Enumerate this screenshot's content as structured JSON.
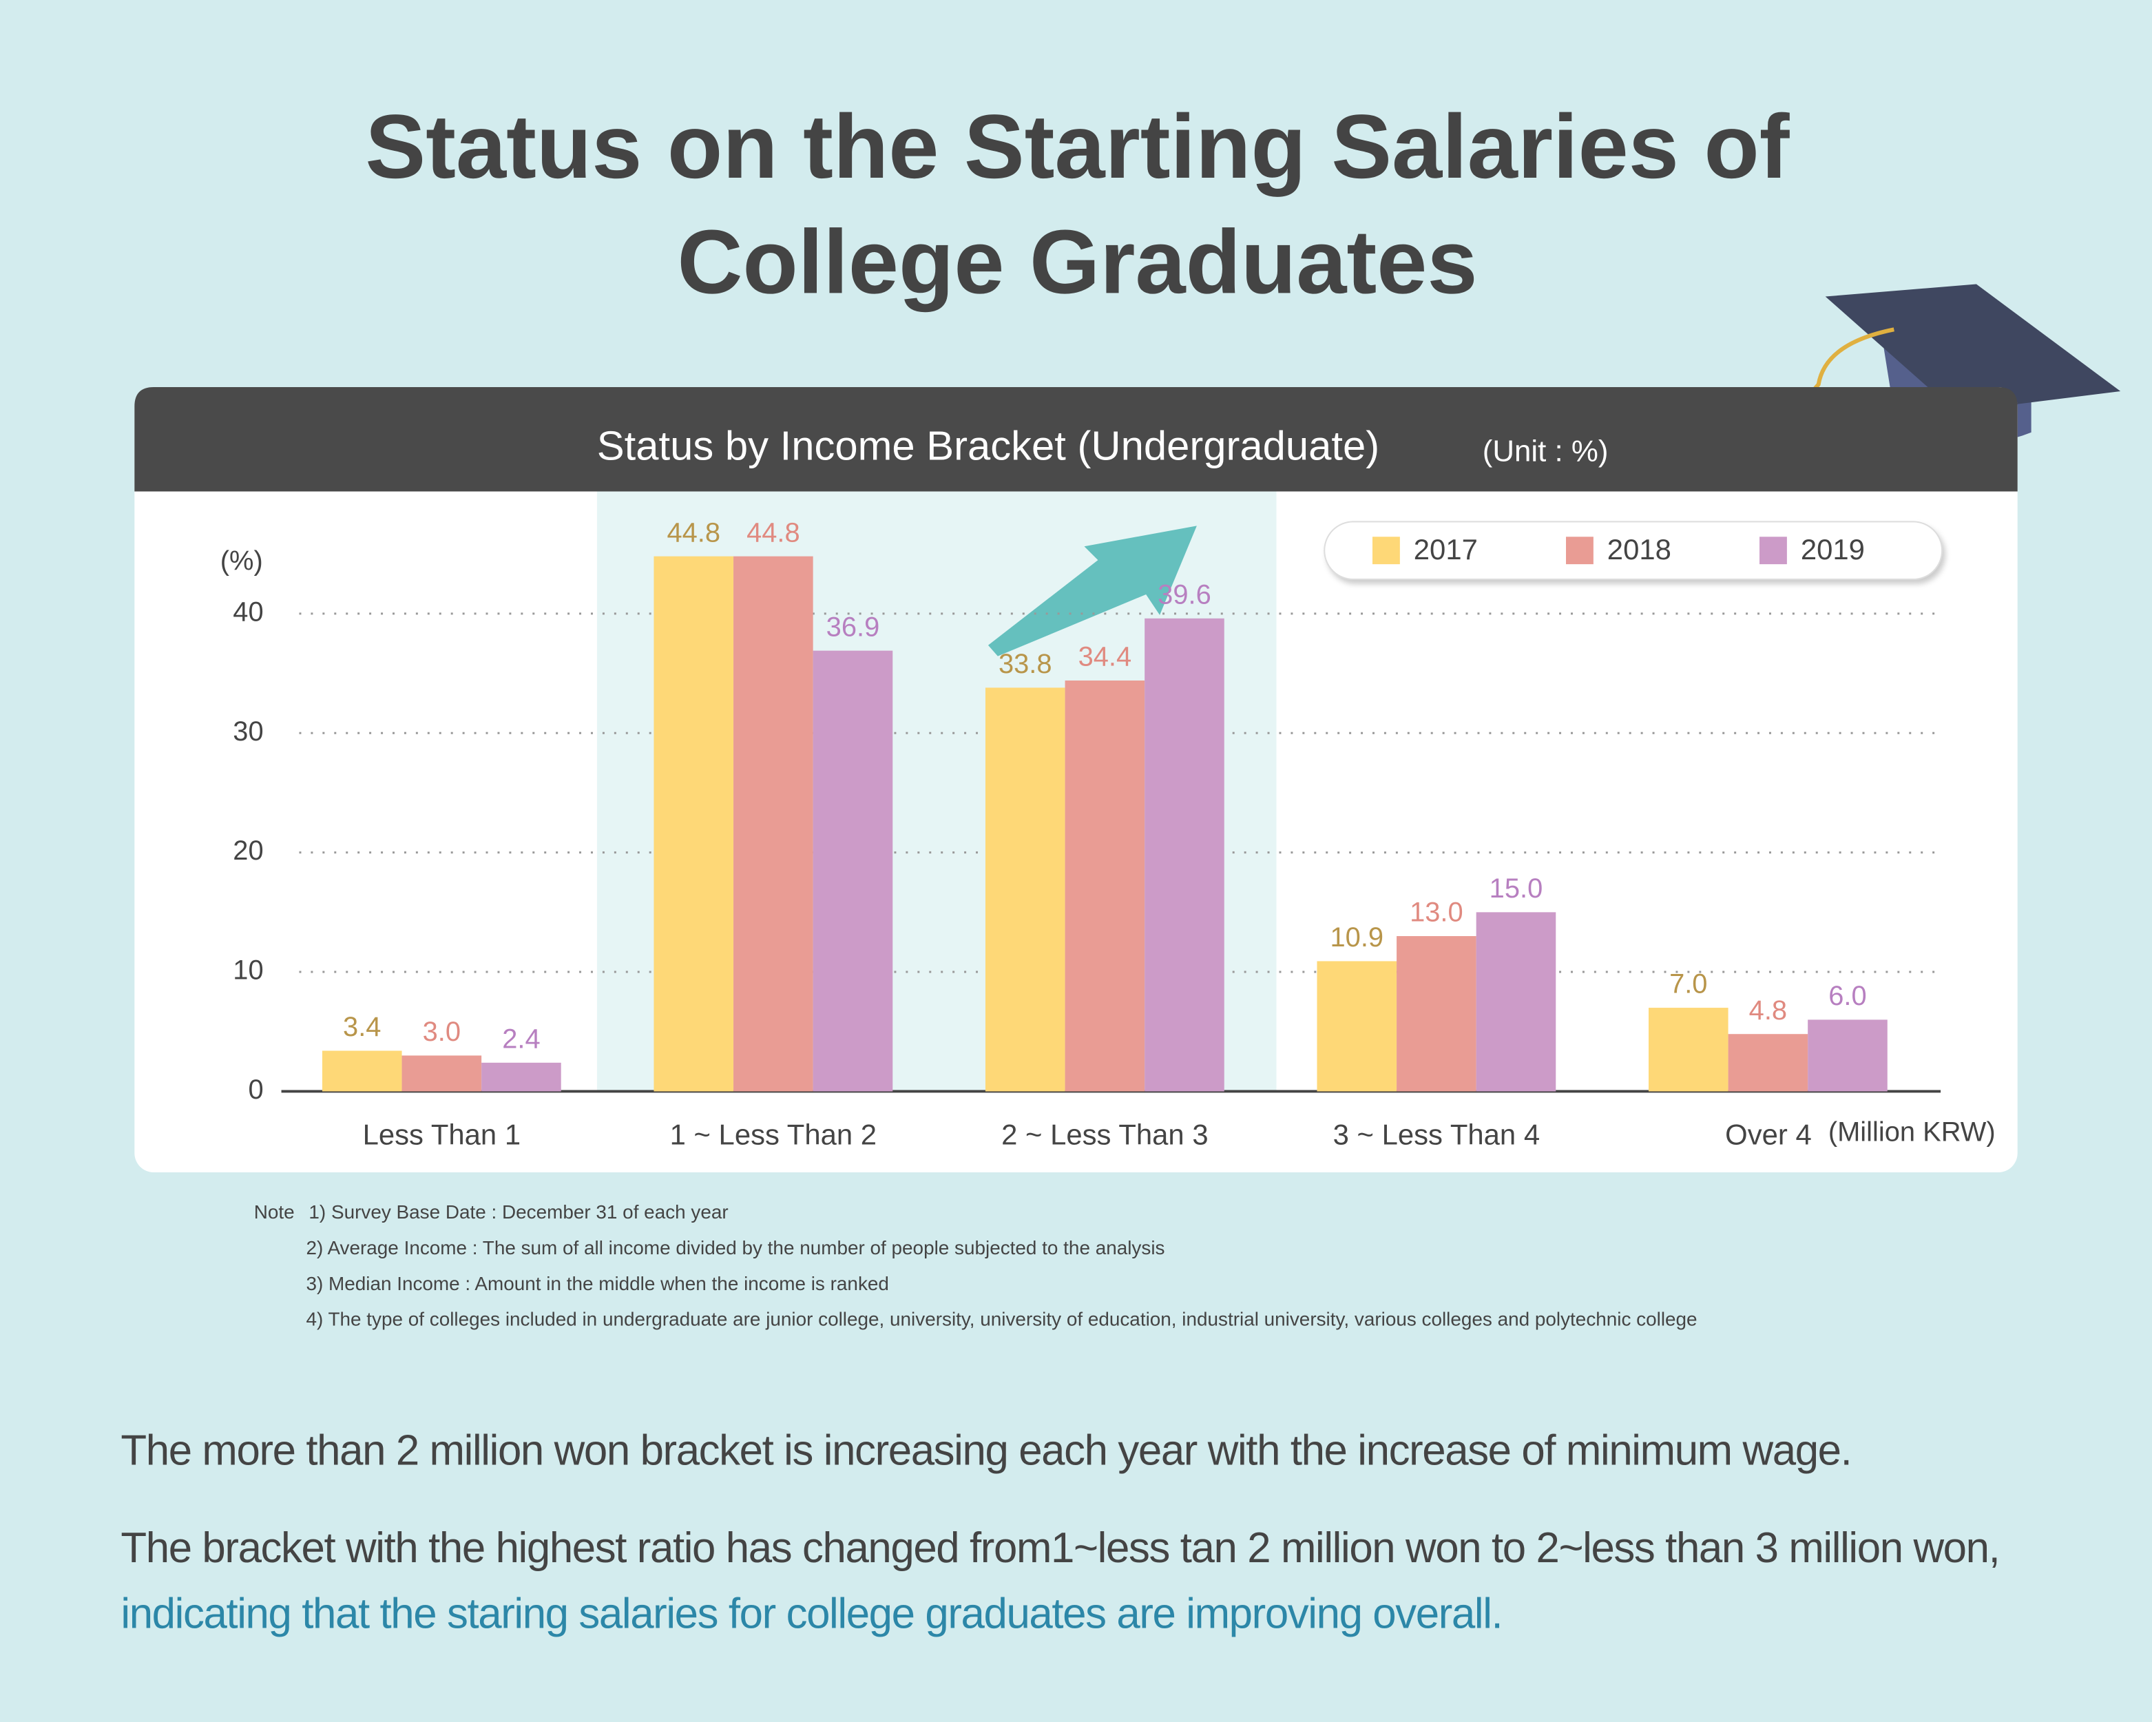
{
  "title_lines": [
    "Status on the Starting Salaries of",
    "College Graduates"
  ],
  "chart_data": {
    "type": "bar",
    "title": "Status by Income Bracket (Undergraduate)",
    "unit": "(Unit : %)",
    "y_label": "(%)",
    "x_unit": "(Million KRW)",
    "categories": [
      "Less Than 1",
      "1 ~ Less Than 2",
      "2 ~ Less Than 3",
      "3 ~ Less Than 4",
      "Over 4"
    ],
    "series": [
      {
        "name": "2017",
        "color": "#fed877",
        "values": [
          3.4,
          44.8,
          33.8,
          10.9,
          7.0
        ],
        "value_labels": [
          "3.4",
          "44.8",
          "33.8",
          "10.9",
          "7.0"
        ]
      },
      {
        "name": "2018",
        "color": "#e99c94",
        "values": [
          3.0,
          44.8,
          34.4,
          13.0,
          4.8
        ],
        "value_labels": [
          "3.0",
          "44.8",
          "34.4",
          "13.0",
          "4.8"
        ]
      },
      {
        "name": "2019",
        "color": "#cc9bc8",
        "values": [
          2.4,
          36.9,
          39.6,
          15.0,
          6.0
        ],
        "value_labels": [
          "2.4",
          "36.9",
          "39.6",
          "15.0",
          "6.0"
        ]
      }
    ],
    "ylim": [
      0,
      50
    ],
    "yticks": [
      0,
      10,
      20,
      30,
      40
    ],
    "grid": true
  },
  "notes": {
    "label": "Note",
    "items": [
      "1) Survey Base Date : December 31 of each year",
      "2) Average Income : The sum of all income divided by the number of people subjected to the analysis",
      "3) Median Income : Amount in the middle when the income is ranked",
      "4) The type of colleges included in undergraduate are junior college, university, university of  education, industrial university, various colleges and polytechnic college"
    ]
  },
  "summary": {
    "first": "The more than 2 million won bracket is increasing each year with the increase of minimum wage.",
    "second": "The bracket with the highest ratio has changed from1~less tan 2 million won to 2~less than 3 million won,",
    "highlight": "indicating that the staring salaries for college graduates are improving overall."
  }
}
